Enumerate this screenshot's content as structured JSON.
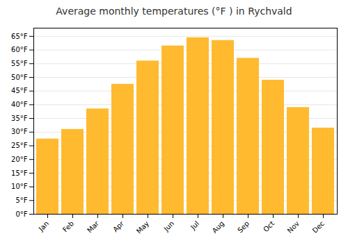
{
  "chart_data": {
    "type": "bar",
    "title": "Average monthly temperatures (°F ) in Rychvald",
    "categories": [
      "Jan",
      "Feb",
      "Mar",
      "Apr",
      "May",
      "Jun",
      "Jul",
      "Aug",
      "Sep",
      "Oct",
      "Nov",
      "Dec"
    ],
    "values": [
      27.5,
      31,
      38.5,
      47.5,
      56,
      61.5,
      64.5,
      63.5,
      57,
      49,
      39,
      31.5
    ],
    "color": "#FFBA30",
    "ylim": [
      0,
      68
    ],
    "yticks": [
      {
        "value": 0,
        "label": "0°F"
      },
      {
        "value": 5,
        "label": "5°F"
      },
      {
        "value": 10,
        "label": "10°F"
      },
      {
        "value": 15,
        "label": "15°F"
      },
      {
        "value": 20,
        "label": "20°F"
      },
      {
        "value": 25,
        "label": "25°F"
      },
      {
        "value": 30,
        "label": "30°F"
      },
      {
        "value": 35,
        "label": "35°F"
      },
      {
        "value": 40,
        "label": "40°F"
      },
      {
        "value": 45,
        "label": "45°F"
      },
      {
        "value": 50,
        "label": "50°F"
      },
      {
        "value": 55,
        "label": "55°F"
      },
      {
        "value": 60,
        "label": "60°F"
      },
      {
        "value": 65,
        "label": "65°F"
      }
    ],
    "grid": true
  }
}
